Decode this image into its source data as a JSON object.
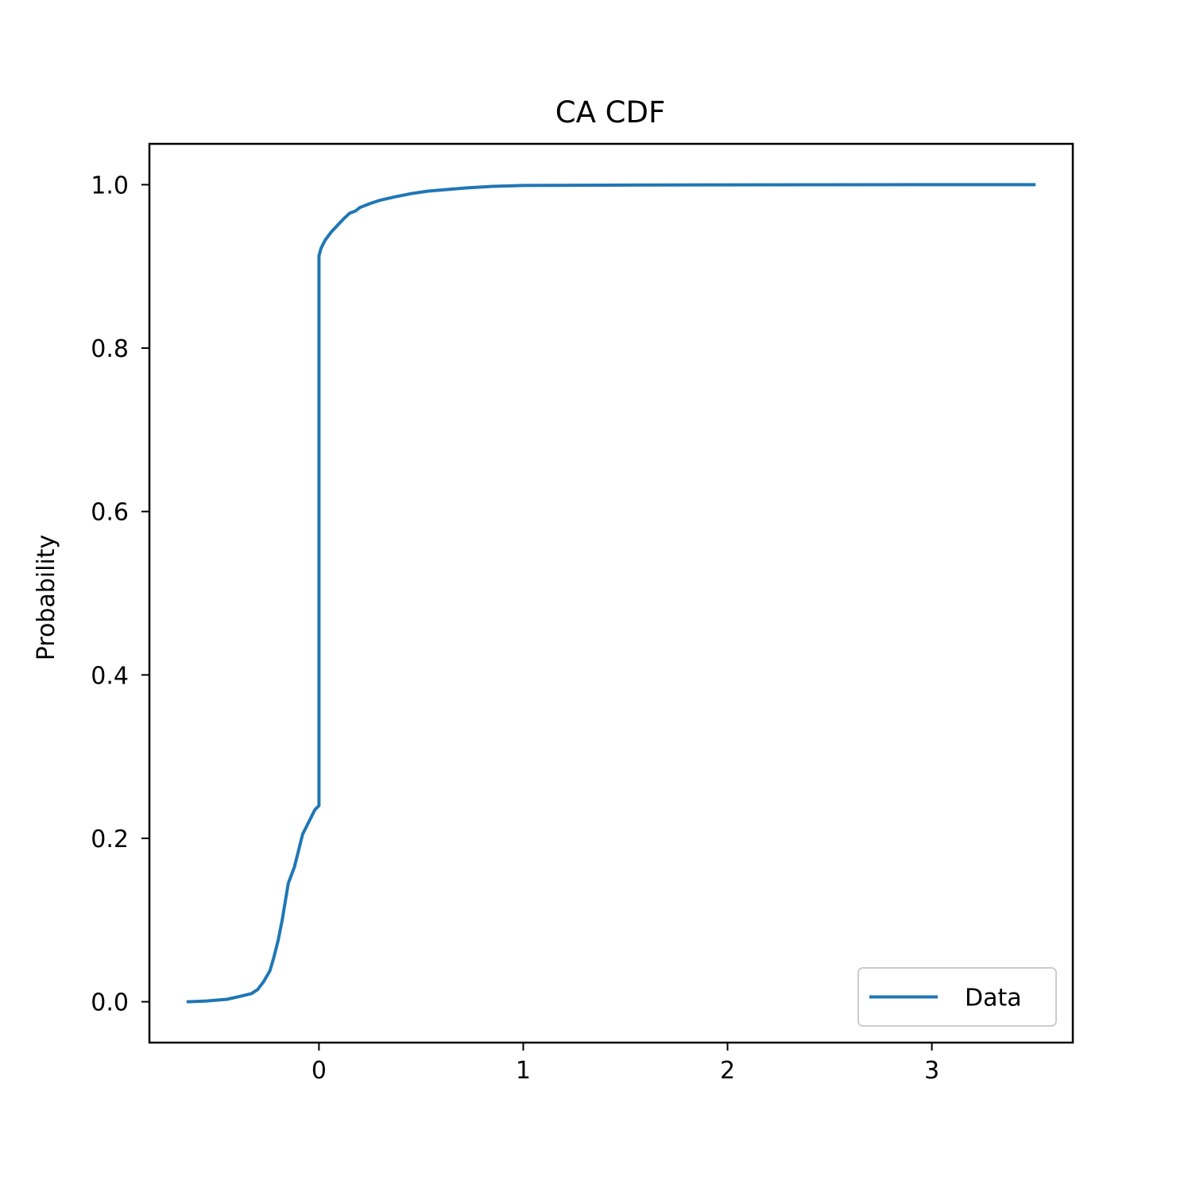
{
  "chart_data": {
    "type": "line",
    "title": "CA CDF",
    "xlabel": "",
    "ylabel": "Probability",
    "xlim": [
      -0.83,
      3.69
    ],
    "ylim": [
      -0.05,
      1.05
    ],
    "xticks": [
      0,
      1,
      2,
      3
    ],
    "xtick_labels": [
      "0",
      "1",
      "2",
      "3"
    ],
    "yticks": [
      0.0,
      0.2,
      0.4,
      0.6,
      0.8,
      1.0
    ],
    "ytick_labels": [
      "0.0",
      "0.2",
      "0.4",
      "0.6",
      "0.8",
      "1.0"
    ],
    "grid": false,
    "legend_position": "lower-right",
    "series": [
      {
        "name": "Data",
        "color": "#1f77b4",
        "x": [
          -0.64,
          -0.55,
          -0.45,
          -0.38,
          -0.33,
          -0.3,
          -0.27,
          -0.24,
          -0.22,
          -0.2,
          -0.18,
          -0.15,
          -0.12,
          -0.1,
          -0.08,
          -0.06,
          -0.04,
          -0.02,
          0.0,
          0.0,
          0.0,
          0.01,
          0.03,
          0.06,
          0.09,
          0.12,
          0.15,
          0.18,
          0.2,
          0.25,
          0.3,
          0.37,
          0.45,
          0.53,
          0.62,
          0.72,
          0.85,
          1.0,
          1.5,
          2.0,
          2.5,
          3.0,
          3.5
        ],
        "y": [
          0.0,
          0.001,
          0.003,
          0.007,
          0.01,
          0.015,
          0.025,
          0.038,
          0.055,
          0.075,
          0.1,
          0.145,
          0.165,
          0.185,
          0.205,
          0.215,
          0.225,
          0.235,
          0.24,
          0.91,
          0.913,
          0.922,
          0.932,
          0.942,
          0.95,
          0.958,
          0.965,
          0.968,
          0.972,
          0.977,
          0.981,
          0.985,
          0.989,
          0.992,
          0.994,
          0.996,
          0.998,
          0.999,
          0.9995,
          0.9998,
          0.9999,
          1.0,
          1.0
        ]
      }
    ]
  }
}
